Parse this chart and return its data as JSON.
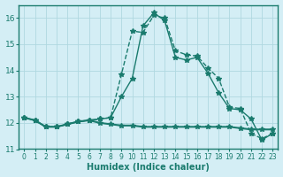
{
  "xlabel": "Humidex (Indice chaleur)",
  "x": [
    0,
    1,
    2,
    3,
    4,
    5,
    6,
    7,
    8,
    9,
    10,
    11,
    12,
    13,
    14,
    15,
    16,
    17,
    18,
    19,
    20,
    21,
    22,
    23
  ],
  "line1": [
    12.2,
    12.1,
    11.85,
    11.85,
    11.95,
    12.05,
    12.1,
    12.15,
    12.2,
    13.85,
    15.5,
    15.45,
    16.1,
    16.0,
    14.75,
    14.6,
    14.55,
    14.1,
    13.7,
    12.6,
    12.55,
    11.6,
    11.4,
    11.6
  ],
  "line2": [
    12.2,
    12.1,
    11.85,
    11.85,
    11.95,
    12.05,
    12.1,
    12.15,
    12.2,
    13.0,
    13.7,
    15.7,
    16.2,
    15.9,
    14.5,
    14.4,
    14.5,
    13.9,
    13.15,
    12.55,
    12.5,
    12.15,
    11.35,
    11.6
  ],
  "line3": [
    12.2,
    12.1,
    11.85,
    11.85,
    11.95,
    12.05,
    12.1,
    12.0,
    11.95,
    11.9,
    11.9,
    11.85,
    11.85,
    11.85,
    11.85,
    11.85,
    11.85,
    11.85,
    11.85,
    11.85,
    11.8,
    11.75,
    11.75,
    11.75
  ],
  "ylim": [
    11.0,
    16.5
  ],
  "yticks": [
    11,
    12,
    13,
    14,
    15,
    16
  ],
  "bg_color": "#d4eef5",
  "line_color": "#1a7b6e",
  "grid_color": "#b0d8e0"
}
